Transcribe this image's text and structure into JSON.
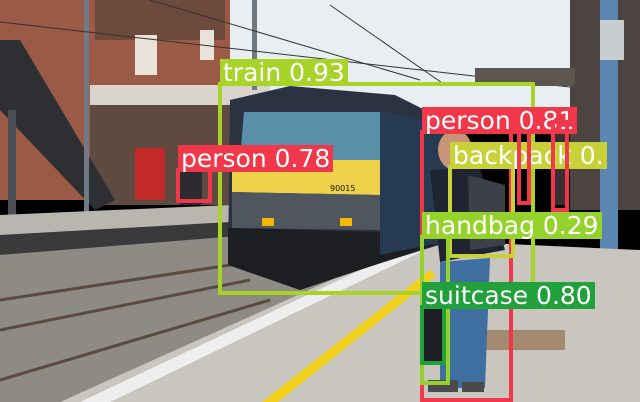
{
  "detections": [
    {
      "label": "train",
      "score": "0.93",
      "color": "#a8d42a"
    },
    {
      "label": "person",
      "score": "0.81",
      "color": "#f0384a"
    },
    {
      "label": "person",
      "score": "0.78",
      "color": "#f0384a"
    },
    {
      "label": "backpack",
      "score": "0.",
      "color": "#c8d238"
    },
    {
      "label": "handbag",
      "score": "0.29",
      "color": "#96d22c"
    },
    {
      "label": "suitcase",
      "score": "0.80",
      "color": "#21a03c"
    },
    {
      "label": "",
      "score": "",
      "color": "#f0384a"
    },
    {
      "label": "",
      "score": "",
      "color": "#f0384a"
    }
  ],
  "scene": {
    "sky_color": "#e9eef2",
    "brick_color": "#9a5a45",
    "train_color": "#2b3342",
    "train_stripe_color": "#f0d24a",
    "platform_color": "#c9c6c0",
    "platform_line_color": "#f2d21c",
    "train_number": "90015"
  }
}
